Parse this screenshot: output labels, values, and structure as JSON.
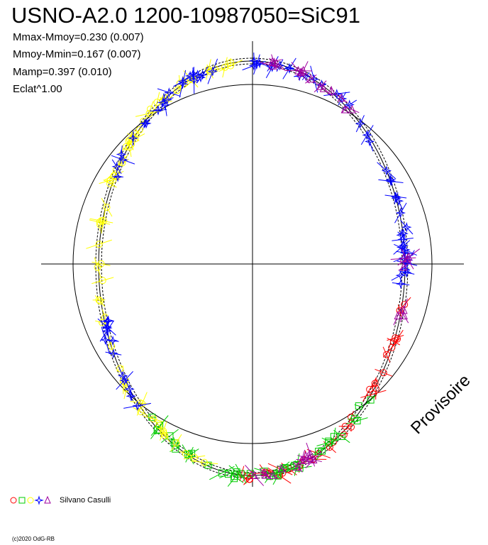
{
  "header": {
    "title": "USNO-A2.0 1200-10987050=SiC91",
    "stats": [
      "Mmax-Mmoy=0.230 (0.007)",
      "Mmoy-Mmin=0.167 (0.007)",
      "Mamp=0.397 (0.010)",
      "Eclat^1.00"
    ]
  },
  "watermark": "Provisoire",
  "legend": {
    "symbols": [
      {
        "shape": "circle",
        "color": "#ff0000"
      },
      {
        "shape": "square",
        "color": "#00cc00"
      },
      {
        "shape": "circle",
        "color": "#ffff00"
      },
      {
        "shape": "star",
        "color": "#0000ff"
      },
      {
        "shape": "triangle",
        "color": "#a000a0"
      }
    ],
    "observer": "Silvano Casulli"
  },
  "footer": {
    "copyright": "(c)2020 OdG-RB"
  },
  "chart_data": {
    "type": "scatter",
    "polar": true,
    "axes": "crosshair",
    "reference_circle": true,
    "fit_curve": "dashed-loop-with-envelope",
    "series": [
      {
        "color": "#ff0000",
        "marker": "circle",
        "phase_ranges": [
          [
            0.28,
            0.36
          ],
          [
            0.38,
            0.52
          ]
        ]
      },
      {
        "color": "#00cc00",
        "marker": "square",
        "phase_ranges": [
          [
            0.36,
            0.62
          ]
        ]
      },
      {
        "color": "#ffff00",
        "marker": "circle",
        "phase_ranges": [
          [
            0.55,
            0.98
          ]
        ]
      },
      {
        "color": "#0000ff",
        "marker": "star",
        "phase_ranges": [
          [
            0.0,
            0.27
          ],
          [
            0.63,
            0.72
          ],
          [
            0.82,
            0.96
          ]
        ]
      },
      {
        "color": "#a000a0",
        "marker": "triangle",
        "phase_ranges": [
          [
            0.02,
            0.12
          ],
          [
            0.24,
            0.29
          ],
          [
            0.42,
            0.5
          ]
        ]
      }
    ]
  }
}
